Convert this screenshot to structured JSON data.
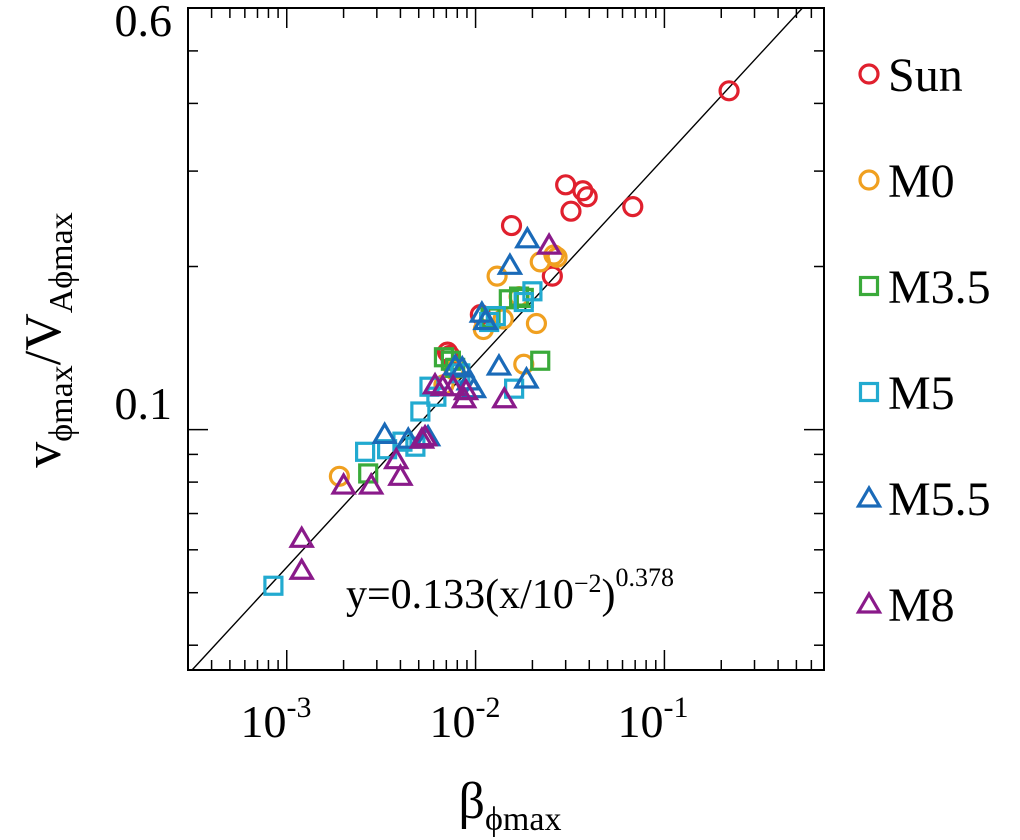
{
  "chart_data": {
    "type": "scatter",
    "x_scale": "log",
    "y_scale": "log",
    "xlim": [
      0.0003,
      0.7
    ],
    "ylim": [
      0.036,
      0.6
    ],
    "x_ticks": [
      {
        "value": 0.001,
        "base": "10",
        "exp": "-3"
      },
      {
        "value": 0.01,
        "base": "10",
        "exp": "-2"
      },
      {
        "value": 0.1,
        "base": "10",
        "exp": "-1"
      }
    ],
    "y_ticks": [
      {
        "value": 0.6,
        "label": "0.6"
      },
      {
        "value": 0.1,
        "label": "0.1"
      }
    ],
    "xlabel": {
      "main": "β",
      "sub": "ϕmax"
    },
    "ylabel": {
      "main1": "v",
      "sub1": "ϕmax",
      "slash": "/V",
      "sub2": "Aϕmax"
    },
    "fit": {
      "coef": 0.133,
      "x0": 0.01,
      "exponent": 0.378,
      "label_prefix": "y=0.133(x/10",
      "label_exp1": "−2",
      "label_mid": ")",
      "label_exp2": "0.378"
    },
    "series": [
      {
        "name": "Sun",
        "marker": "circle",
        "color": "#e0202e",
        "points": [
          [
            0.0071,
            0.139
          ],
          [
            0.0073,
            0.137
          ],
          [
            0.0106,
            0.163
          ],
          [
            0.0155,
            0.238
          ],
          [
            0.0255,
            0.192
          ],
          [
            0.03,
            0.283
          ],
          [
            0.032,
            0.253
          ],
          [
            0.037,
            0.276
          ],
          [
            0.039,
            0.269
          ],
          [
            0.068,
            0.258
          ],
          [
            0.22,
            0.422
          ]
        ]
      },
      {
        "name": "M0",
        "color": "#f0a020",
        "marker": "circle",
        "points": [
          [
            0.0019,
            0.082
          ],
          [
            0.0068,
            0.121
          ],
          [
            0.0077,
            0.129
          ],
          [
            0.011,
            0.153
          ],
          [
            0.013,
            0.192
          ],
          [
            0.014,
            0.16
          ],
          [
            0.017,
            0.176
          ],
          [
            0.018,
            0.132
          ],
          [
            0.021,
            0.157
          ],
          [
            0.022,
            0.204
          ],
          [
            0.026,
            0.21
          ],
          [
            0.027,
            0.208
          ]
        ]
      },
      {
        "name": "M3.5",
        "color": "#3aaa3a",
        "marker": "square",
        "points": [
          [
            0.0027,
            0.083
          ],
          [
            0.0068,
            0.136
          ],
          [
            0.0074,
            0.134
          ],
          [
            0.0078,
            0.13
          ],
          [
            0.012,
            0.161
          ],
          [
            0.015,
            0.174
          ],
          [
            0.017,
            0.176
          ],
          [
            0.018,
            0.175
          ],
          [
            0.022,
            0.134
          ]
        ]
      },
      {
        "name": "M5",
        "color": "#22aad0",
        "marker": "square",
        "points": [
          [
            0.00085,
            0.0515
          ],
          [
            0.0026,
            0.091
          ],
          [
            0.0034,
            0.092
          ],
          [
            0.0041,
            0.095
          ],
          [
            0.0048,
            0.093
          ],
          [
            0.0051,
            0.108
          ],
          [
            0.0057,
            0.12
          ],
          [
            0.0062,
            0.115
          ],
          [
            0.0083,
            0.127
          ],
          [
            0.0118,
            0.158
          ],
          [
            0.0128,
            0.162
          ],
          [
            0.016,
            0.119
          ],
          [
            0.018,
            0.172
          ],
          [
            0.02,
            0.18
          ]
        ]
      },
      {
        "name": "M5.5",
        "color": "#1a6ab8",
        "marker": "triangle",
        "points": [
          [
            0.0033,
            0.098
          ],
          [
            0.0044,
            0.096
          ],
          [
            0.0056,
            0.097
          ],
          [
            0.0078,
            0.131
          ],
          [
            0.0085,
            0.13
          ],
          [
            0.0092,
            0.123
          ],
          [
            0.0098,
            0.119
          ],
          [
            0.0108,
            0.164
          ],
          [
            0.0113,
            0.159
          ],
          [
            0.0133,
            0.131
          ],
          [
            0.0152,
            0.201
          ],
          [
            0.0186,
            0.124
          ],
          [
            0.0188,
            0.225
          ]
        ]
      },
      {
        "name": "M8",
        "color": "#8a1a8a",
        "marker": "triangle",
        "points": [
          [
            0.0012,
            0.063
          ],
          [
            0.0012,
            0.055
          ],
          [
            0.002,
            0.079
          ],
          [
            0.0028,
            0.079
          ],
          [
            0.0038,
            0.088
          ],
          [
            0.004,
            0.082
          ],
          [
            0.0052,
            0.096
          ],
          [
            0.0054,
            0.097
          ],
          [
            0.0061,
            0.121
          ],
          [
            0.0067,
            0.12
          ],
          [
            0.0076,
            0.12
          ],
          [
            0.0087,
            0.114
          ],
          [
            0.0089,
            0.118
          ],
          [
            0.0142,
            0.114
          ],
          [
            0.0245,
            0.219
          ]
        ]
      }
    ]
  }
}
